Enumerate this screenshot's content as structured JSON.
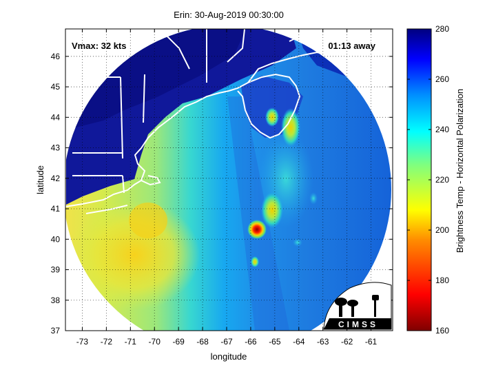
{
  "chart_data": {
    "type": "heatmap",
    "title": "Erin: 30-Aug-2019 00:30:00",
    "xlabel": "longitude",
    "ylabel": "latitude",
    "xlim": [
      -73.7,
      -60.1
    ],
    "ylim": [
      37.0,
      46.9
    ],
    "xticks": [
      -73,
      -72,
      -71,
      -70,
      -69,
      -68,
      -67,
      -66,
      -65,
      -64,
      -63,
      -62,
      -61
    ],
    "yticks": [
      37,
      38,
      39,
      40,
      41,
      42,
      43,
      44,
      45,
      46
    ],
    "xtick_labels": [
      "-73",
      "-72",
      "-71",
      "-70",
      "-69",
      "-68",
      "-67",
      "-66",
      "-65",
      "-64",
      "-63",
      "-62",
      "-61"
    ],
    "ytick_labels": [
      "37",
      "38",
      "39",
      "40",
      "41",
      "42",
      "43",
      "44",
      "45",
      "46"
    ],
    "grid": true,
    "annotations": {
      "vmax": "Vmax: 32 kts",
      "time_away": "01:13 away"
    },
    "colorbar": {
      "label": "Brightness Temp - Horizontal Polarization",
      "range": [
        160,
        280
      ],
      "ticks": [
        160,
        180,
        200,
        220,
        240,
        260,
        280
      ],
      "tick_labels": [
        "160",
        "180",
        "200",
        "220",
        "240",
        "260",
        "280"
      ],
      "colormap": "jet"
    },
    "swath": {
      "center": [
        -66.8,
        41.8
      ],
      "radius_deg": 4.9
    },
    "features": [
      {
        "name": "cold-core",
        "lon": -66.0,
        "lat": 40.2,
        "value": 172
      },
      {
        "name": "rainband-north",
        "lon": -64.4,
        "lat": 43.6,
        "value": 218
      },
      {
        "name": "rainband-mid",
        "lon": -65.6,
        "lat": 40.6,
        "value": 230
      },
      {
        "name": "warm-ocean-west",
        "lon": -70.8,
        "lat": 39.6,
        "value": 203
      }
    ],
    "logo": "CIMSS"
  }
}
